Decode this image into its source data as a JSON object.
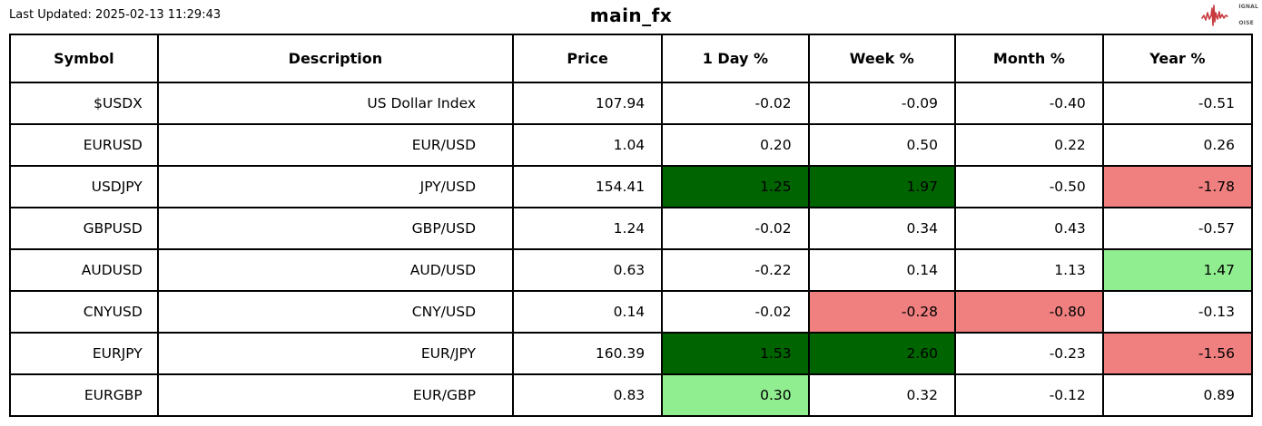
{
  "colors": {
    "strong_up_bg": "#006400",
    "up_bg": "#90ee90",
    "down_bg": "#f08080",
    "logo_red": "#c73b3f",
    "border": "#000000"
  },
  "header": {
    "last_updated": "Last Updated: 2025-02-13 11:29:43",
    "title": "main_fx",
    "logo": {
      "lines": [
        {
          "initial": "S",
          "rest": "IGNAL"
        },
        {
          "initial": "2",
          "rest": ""
        },
        {
          "initial": "N",
          "rest": "OISE"
        }
      ]
    }
  },
  "table": {
    "columns": [
      "Symbol",
      "Description",
      "Price",
      "1 Day %",
      "Week %",
      "Month %",
      "Year %"
    ],
    "column_widths_pct": [
      11.9,
      28.6,
      12.0,
      11.8,
      11.8,
      11.9,
      12.0
    ],
    "rows": [
      {
        "symbol": "$USDX",
        "description": "US Dollar Index",
        "price": "107.94",
        "day": "-0.02",
        "week": "-0.09",
        "month": "-0.40",
        "year": "-0.51",
        "highlights": {}
      },
      {
        "symbol": "EURUSD",
        "description": "EUR/USD",
        "price": "1.04",
        "day": "0.20",
        "week": "0.50",
        "month": "0.22",
        "year": "0.26",
        "highlights": {}
      },
      {
        "symbol": "USDJPY",
        "description": "JPY/USD",
        "price": "154.41",
        "day": "1.25",
        "week": "1.97",
        "month": "-0.50",
        "year": "-1.78",
        "highlights": {
          "day": "strong_up_bg",
          "week": "strong_up_bg",
          "year": "down_bg"
        }
      },
      {
        "symbol": "GBPUSD",
        "description": "GBP/USD",
        "price": "1.24",
        "day": "-0.02",
        "week": "0.34",
        "month": "0.43",
        "year": "-0.57",
        "highlights": {}
      },
      {
        "symbol": "AUDUSD",
        "description": "AUD/USD",
        "price": "0.63",
        "day": "-0.22",
        "week": "0.14",
        "month": "1.13",
        "year": "1.47",
        "highlights": {
          "year": "up_bg"
        }
      },
      {
        "symbol": "CNYUSD",
        "description": "CNY/USD",
        "price": "0.14",
        "day": "-0.02",
        "week": "-0.28",
        "month": "-0.80",
        "year": "-0.13",
        "highlights": {
          "week": "down_bg",
          "month": "down_bg"
        }
      },
      {
        "symbol": "EURJPY",
        "description": "EUR/JPY",
        "price": "160.39",
        "day": "1.53",
        "week": "2.60",
        "month": "-0.23",
        "year": "-1.56",
        "highlights": {
          "day": "strong_up_bg",
          "week": "strong_up_bg",
          "year": "down_bg"
        }
      },
      {
        "symbol": "EURGBP",
        "description": "EUR/GBP",
        "price": "0.83",
        "day": "0.30",
        "week": "0.32",
        "month": "-0.12",
        "year": "0.89",
        "highlights": {
          "day": "up_bg"
        }
      }
    ]
  },
  "chart_data": {
    "type": "table",
    "title": "main_fx",
    "last_updated": "2025-02-13 11:29:43",
    "columns": [
      "Symbol",
      "Description",
      "Price",
      "1 Day %",
      "Week %",
      "Month %",
      "Year %"
    ],
    "rows": [
      [
        "$USDX",
        "US Dollar Index",
        107.94,
        -0.02,
        -0.09,
        -0.4,
        -0.51
      ],
      [
        "EURUSD",
        "EUR/USD",
        1.04,
        0.2,
        0.5,
        0.22,
        0.26
      ],
      [
        "USDJPY",
        "JPY/USD",
        154.41,
        1.25,
        1.97,
        -0.5,
        -1.78
      ],
      [
        "GBPUSD",
        "GBP/USD",
        1.24,
        -0.02,
        0.34,
        0.43,
        -0.57
      ],
      [
        "AUDUSD",
        "AUD/USD",
        0.63,
        -0.22,
        0.14,
        1.13,
        1.47
      ],
      [
        "CNYUSD",
        "CNY/USD",
        0.14,
        -0.02,
        -0.28,
        -0.8,
        -0.13
      ],
      [
        "EURJPY",
        "EUR/JPY",
        160.39,
        1.53,
        2.6,
        -0.23,
        -1.56
      ],
      [
        "EURGBP",
        "EUR/GBP",
        0.83,
        0.3,
        0.32,
        -0.12,
        0.89
      ]
    ],
    "cell_highlights": [
      {
        "row": "USDJPY",
        "column": "1 Day %",
        "color": "#006400"
      },
      {
        "row": "USDJPY",
        "column": "Week %",
        "color": "#006400"
      },
      {
        "row": "USDJPY",
        "column": "Year %",
        "color": "#f08080"
      },
      {
        "row": "AUDUSD",
        "column": "Year %",
        "color": "#90ee90"
      },
      {
        "row": "CNYUSD",
        "column": "Week %",
        "color": "#f08080"
      },
      {
        "row": "CNYUSD",
        "column": "Month %",
        "color": "#f08080"
      },
      {
        "row": "EURJPY",
        "column": "1 Day %",
        "color": "#006400"
      },
      {
        "row": "EURJPY",
        "column": "Week %",
        "color": "#006400"
      },
      {
        "row": "EURJPY",
        "column": "Year %",
        "color": "#f08080"
      },
      {
        "row": "EURGBP",
        "column": "1 Day %",
        "color": "#90ee90"
      }
    ],
    "layout": {
      "grid": true,
      "header_bold": true,
      "values_align": "right"
    }
  }
}
